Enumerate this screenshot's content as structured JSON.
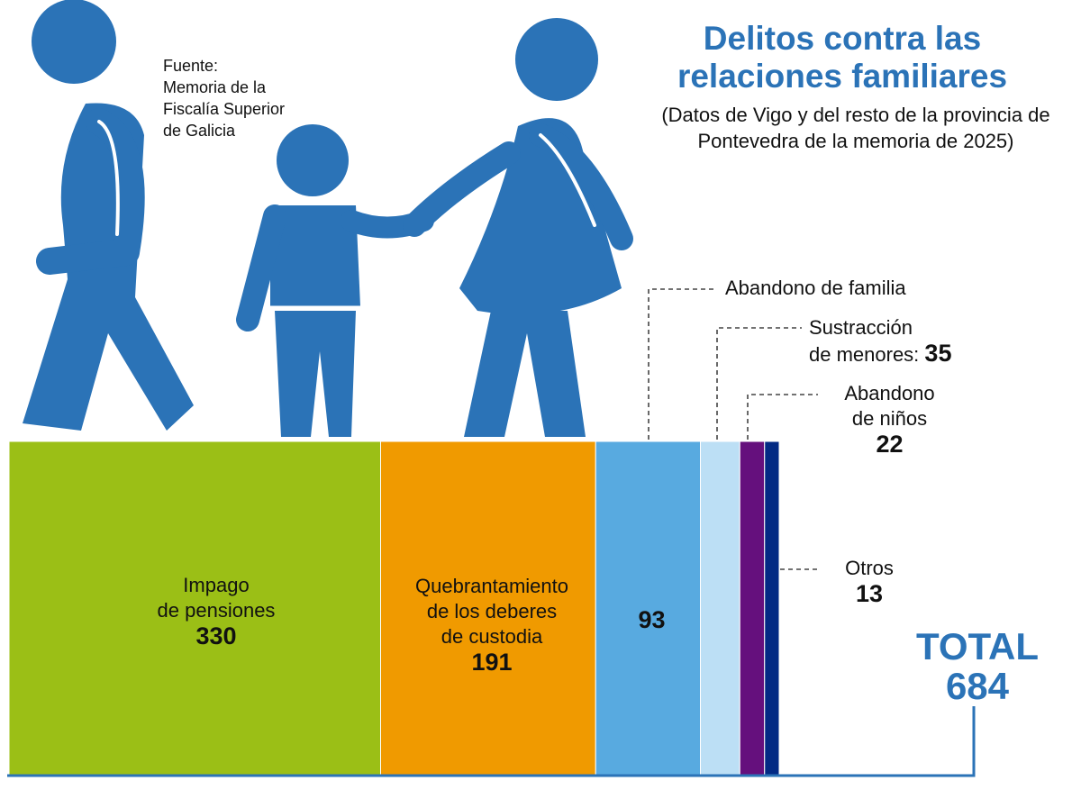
{
  "header": {
    "title": "Delitos contra las relaciones familiares",
    "subtitle": "(Datos de Vigo y del resto de la provincia de Pontevedra de la memoria de 2025)",
    "source": [
      "Fuente:",
      "Memoria de la",
      "Fiscalía Superior",
      "de Galicia"
    ]
  },
  "chart_data": {
    "type": "bar",
    "orientation": "stacked-horizontal-proportional",
    "categories": [
      "Impago de pensiones",
      "Quebrantamiento de los deberes de custodia",
      "Abandono de familia",
      "Sustracción de menores",
      "Abandono de niños",
      "Otros"
    ],
    "values": [
      330,
      191,
      93,
      35,
      22,
      13
    ],
    "colors": [
      "#9bbf16",
      "#f09a00",
      "#58aae0",
      "#bcdff5",
      "#65107d",
      "#032a84"
    ],
    "total_label": "TOTAL",
    "total": 684,
    "labels": {
      "impago": [
        "Impago",
        "de pensiones"
      ],
      "quebrantamiento": [
        "Quebrantamiento",
        "de los deberes",
        "de custodia"
      ],
      "abandono_familia": "Abandono de familia",
      "sustraccion": [
        "Sustracción",
        "de menores:"
      ],
      "abandono_ninos": [
        "Abandono",
        "de niños"
      ],
      "otros": "Otros"
    },
    "value_labels": [
      "330",
      "191",
      "93",
      "35",
      "22",
      "13"
    ],
    "total_text": "684"
  },
  "colors": {
    "accent": "#2b73b7",
    "figures": "#2b73b7"
  }
}
